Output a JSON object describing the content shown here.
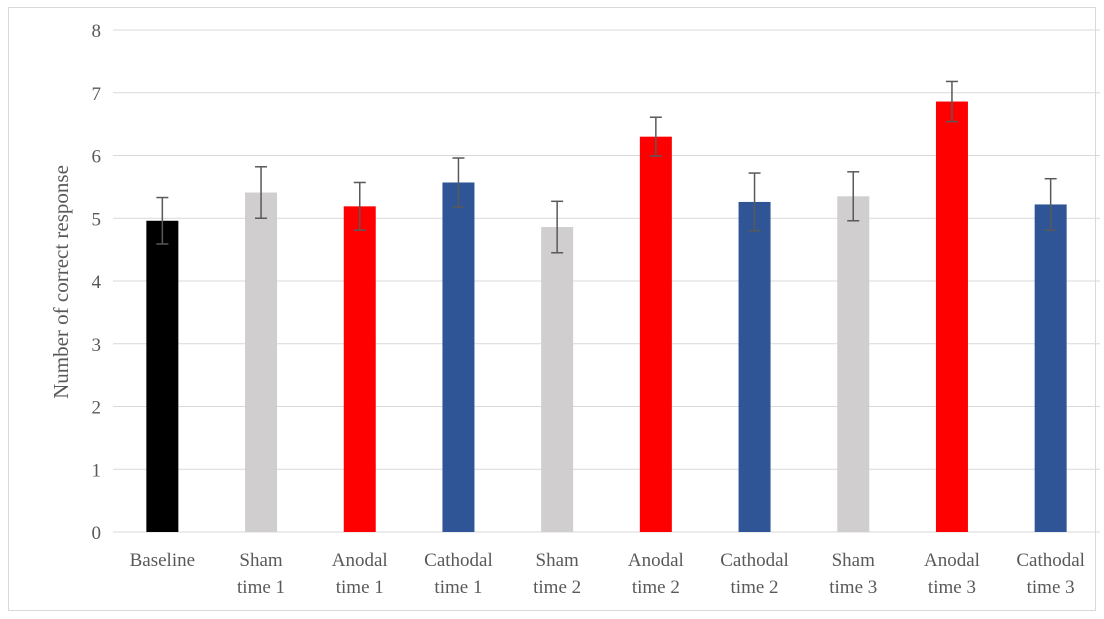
{
  "chart_data": {
    "type": "bar",
    "title": "",
    "xlabel": "",
    "ylabel": "Number of  correct response",
    "ylim": [
      0,
      8
    ],
    "yticks": [
      0,
      1,
      2,
      3,
      4,
      5,
      6,
      7,
      8
    ],
    "grid": true,
    "legend": "none",
    "categories": [
      [
        "Baseline"
      ],
      [
        "Sham",
        "time 1"
      ],
      [
        "Anodal",
        "time 1"
      ],
      [
        "Cathodal",
        "time 1"
      ],
      [
        "Sham",
        "time 2"
      ],
      [
        "Anodal",
        "time 2"
      ],
      [
        "Cathodal",
        "time 2"
      ],
      [
        "Sham",
        "time 3"
      ],
      [
        "Anodal",
        "time 3"
      ],
      [
        "Cathodal",
        "time 3"
      ]
    ],
    "values": [
      4.96,
      5.41,
      5.19,
      5.57,
      4.86,
      6.3,
      5.26,
      5.35,
      6.86,
      5.22
    ],
    "error": [
      0.37,
      0.41,
      0.38,
      0.39,
      0.41,
      0.31,
      0.46,
      0.39,
      0.32,
      0.41
    ],
    "colors": [
      "#000000",
      "#d0cece",
      "#ff0000",
      "#2f5597",
      "#d0cece",
      "#ff0000",
      "#2f5597",
      "#d0cece",
      "#ff0000",
      "#2f5597"
    ],
    "gridline_color": "#d9d9d9",
    "errorbar_color": "#595959"
  }
}
